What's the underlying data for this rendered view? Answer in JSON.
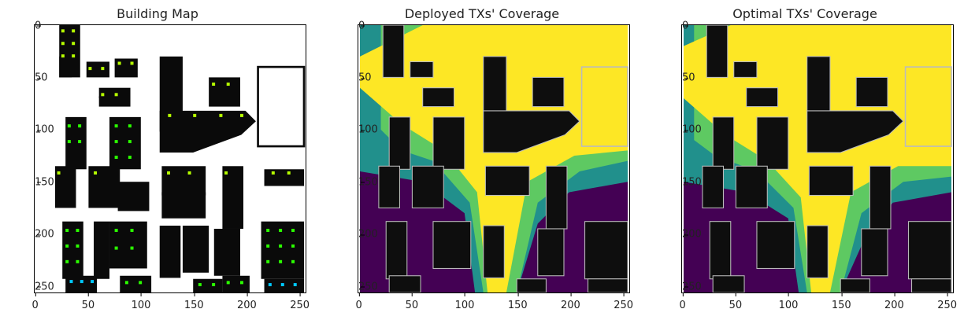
{
  "panels": [
    {
      "title": "Building Map"
    },
    {
      "title": "Deployed TXs' Coverage"
    },
    {
      "title": "Optimal TXs' Coverage"
    }
  ],
  "axis": {
    "yticks": [
      "0",
      "50",
      "100",
      "150",
      "200",
      "250"
    ],
    "xticks": [
      "0",
      "50",
      "100",
      "150",
      "200",
      "250"
    ]
  },
  "colors": {
    "building": "#0a0a0a",
    "tx_green": "#2bff00",
    "tx_yellow": "#d8ff00",
    "tx_cyan": "#00c8ff",
    "coverage_low": "#440154",
    "coverage_mid": "#21908c",
    "coverage_midhigh": "#5ec962",
    "coverage_high": "#fde725"
  }
}
